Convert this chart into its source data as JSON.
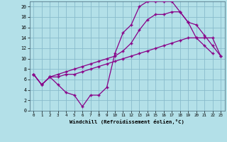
{
  "background_color": "#b3e0e8",
  "grid_color": "#88bbcc",
  "line_color": "#880088",
  "marker": "+",
  "xlim": [
    -0.5,
    23.5
  ],
  "ylim": [
    0,
    21
  ],
  "xticks": [
    0,
    1,
    2,
    3,
    4,
    5,
    6,
    7,
    8,
    9,
    10,
    11,
    12,
    13,
    14,
    15,
    16,
    17,
    18,
    19,
    20,
    21,
    22,
    23
  ],
  "yticks": [
    0,
    2,
    4,
    6,
    8,
    10,
    12,
    14,
    16,
    18,
    20
  ],
  "xlabel": "Windchill (Refroidissement éolien,°C)",
  "series1_x": [
    0,
    1,
    2,
    3,
    4,
    5,
    6,
    7,
    8,
    9,
    10,
    11,
    12,
    13,
    14,
    15,
    16,
    17,
    18,
    19,
    20,
    21,
    22
  ],
  "series1_y": [
    7,
    5,
    6.5,
    5,
    3.5,
    3,
    0.8,
    3,
    3,
    4.5,
    11,
    15,
    16.5,
    20,
    21,
    21,
    21,
    21,
    19,
    17,
    14,
    12.5,
    11
  ],
  "series2_x": [
    0,
    1,
    2,
    3,
    4,
    5,
    6,
    7,
    8,
    9,
    10,
    11,
    12,
    13,
    14,
    15,
    16,
    17,
    18,
    19,
    20,
    21,
    22,
    23
  ],
  "series2_y": [
    7,
    5,
    6.5,
    6.5,
    7,
    7,
    7.5,
    8,
    8.5,
    9,
    9.5,
    10,
    10.5,
    11,
    11.5,
    12,
    12.5,
    13,
    13.5,
    14,
    14,
    14,
    14,
    10.5
  ],
  "series3_x": [
    0,
    1,
    2,
    3,
    4,
    5,
    6,
    7,
    8,
    9,
    10,
    11,
    12,
    13,
    14,
    15,
    16,
    17,
    18,
    19,
    20,
    21,
    22,
    23
  ],
  "series3_y": [
    7,
    5,
    6.5,
    7,
    7.5,
    8,
    8.5,
    9,
    9.5,
    10,
    10.5,
    11.5,
    13,
    15.5,
    17.5,
    18.5,
    18.5,
    19,
    19,
    17,
    16.5,
    14.5,
    12.5,
    10.5
  ]
}
